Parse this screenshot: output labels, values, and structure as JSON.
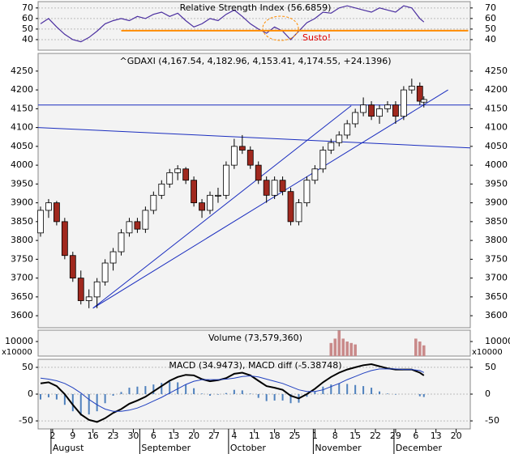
{
  "chart_data": [
    {
      "type": "line",
      "title": "Relative Strength Index (56.6859)",
      "x": [
        2,
        4,
        6,
        8,
        10,
        12,
        14,
        16,
        18,
        20,
        22,
        24,
        26,
        28,
        30,
        32,
        34,
        36,
        38,
        40,
        42,
        44,
        46,
        48,
        50,
        52,
        54,
        56,
        58,
        60,
        62,
        64,
        66,
        68,
        70,
        72,
        74,
        76,
        78,
        80,
        82,
        84,
        86,
        88,
        90,
        92,
        94,
        96,
        97
      ],
      "series": [
        {
          "color": "#4b2fa0",
          "values": [
            55,
            60,
            52,
            45,
            40,
            38,
            42,
            48,
            55,
            58,
            60,
            58,
            62,
            60,
            64,
            66,
            62,
            65,
            58,
            52,
            55,
            60,
            58,
            64,
            68,
            62,
            55,
            50,
            46,
            52,
            48,
            40,
            48,
            56,
            60,
            66,
            65,
            70,
            72,
            70,
            68,
            66,
            70,
            68,
            66,
            72,
            70,
            60,
            56.6859
          ]
        }
      ],
      "xlim": [
        1.4,
        108.5
      ],
      "ylim": [
        30,
        76
      ],
      "yticks": [
        40,
        50,
        60,
        70
      ],
      "grid": true,
      "hline": {
        "value": 48.5,
        "from": 22,
        "to": 108,
        "color": "#ff8c00"
      },
      "annotation": {
        "text": "Susto!",
        "color": "#e00000"
      }
    },
    {
      "type": "candlestick",
      "title": "^GDAXI (4,167.54, 4,182.96, 4,153.41, 4,174.55, +24.1396)",
      "x": [
        2,
        4,
        6,
        8,
        10,
        12,
        14,
        16,
        18,
        20,
        22,
        24,
        26,
        28,
        30,
        32,
        34,
        36,
        38,
        40,
        42,
        44,
        46,
        48,
        50,
        52,
        54,
        56,
        58,
        60,
        62,
        64,
        66,
        68,
        70,
        72,
        74,
        76,
        78,
        80,
        82,
        84,
        86,
        88,
        90,
        92,
        94,
        96,
        97
      ],
      "ohlc": [
        [
          3820,
          3890,
          3810,
          3880
        ],
        [
          3880,
          3910,
          3860,
          3900
        ],
        [
          3900,
          3905,
          3840,
          3850
        ],
        [
          3850,
          3860,
          3750,
          3760
        ],
        [
          3760,
          3770,
          3690,
          3700
        ],
        [
          3700,
          3720,
          3630,
          3640
        ],
        [
          3640,
          3670,
          3620,
          3650
        ],
        [
          3650,
          3700,
          3620,
          3690
        ],
        [
          3690,
          3750,
          3680,
          3740
        ],
        [
          3740,
          3780,
          3720,
          3770
        ],
        [
          3770,
          3830,
          3760,
          3820
        ],
        [
          3820,
          3860,
          3810,
          3850
        ],
        [
          3850,
          3860,
          3820,
          3830
        ],
        [
          3830,
          3890,
          3820,
          3880
        ],
        [
          3880,
          3930,
          3870,
          3920
        ],
        [
          3920,
          3960,
          3910,
          3950
        ],
        [
          3950,
          3990,
          3940,
          3980
        ],
        [
          3980,
          4000,
          3960,
          3990
        ],
        [
          3990,
          3995,
          3950,
          3960
        ],
        [
          3960,
          3970,
          3890,
          3900
        ],
        [
          3900,
          3910,
          3860,
          3880
        ],
        [
          3880,
          3930,
          3870,
          3920
        ],
        [
          3920,
          3940,
          3900,
          3920
        ],
        [
          3920,
          4010,
          3910,
          4000
        ],
        [
          4000,
          4070,
          3990,
          4050
        ],
        [
          4050,
          4080,
          4030,
          4040
        ],
        [
          4040,
          4050,
          3990,
          4000
        ],
        [
          4000,
          4010,
          3950,
          3960
        ],
        [
          3960,
          3970,
          3900,
          3920
        ],
        [
          3920,
          3970,
          3910,
          3960
        ],
        [
          3960,
          3970,
          3920,
          3930
        ],
        [
          3930,
          3940,
          3840,
          3850
        ],
        [
          3850,
          3910,
          3840,
          3900
        ],
        [
          3900,
          3970,
          3890,
          3960
        ],
        [
          3960,
          4000,
          3950,
          3990
        ],
        [
          3990,
          4050,
          3980,
          4040
        ],
        [
          4040,
          4070,
          4030,
          4060
        ],
        [
          4060,
          4090,
          4050,
          4080
        ],
        [
          4080,
          4120,
          4070,
          4110
        ],
        [
          4110,
          4150,
          4100,
          4140
        ],
        [
          4140,
          4180,
          4130,
          4160
        ],
        [
          4160,
          4170,
          4120,
          4130
        ],
        [
          4130,
          4160,
          4110,
          4150
        ],
        [
          4150,
          4170,
          4140,
          4160
        ],
        [
          4160,
          4170,
          4110,
          4130
        ],
        [
          4130,
          4210,
          4120,
          4200
        ],
        [
          4200,
          4230,
          4190,
          4210
        ],
        [
          4210,
          4220,
          4160,
          4170
        ],
        [
          4167.54,
          4182.96,
          4153.41,
          4174.55
        ]
      ],
      "up_color": "#ffffff",
      "down_color": "#a0281e",
      "xlim": [
        1.4,
        108.5
      ],
      "ylim": [
        3568,
        4297
      ],
      "yticks": [
        3600,
        3650,
        3700,
        3750,
        3800,
        3850,
        3900,
        3950,
        4000,
        4050,
        4100,
        4150,
        4200,
        4250
      ],
      "trendlines": [
        {
          "x": [
            15,
            103
          ],
          "y": [
            3620,
            4200
          ]
        },
        {
          "x": [
            15,
            79
          ],
          "y": [
            3620,
            4158
          ]
        },
        {
          "x": [
            1.4,
            108.5
          ],
          "y": [
            4160,
            4160
          ]
        },
        {
          "x": [
            1.4,
            108.5
          ],
          "y": [
            4100,
            4046
          ]
        }
      ],
      "trendline_color": "#1a2dbf"
    },
    {
      "type": "bar",
      "title": "Volume (73,579,360)",
      "x": [
        74,
        75,
        76,
        77,
        78,
        79,
        80,
        95,
        96,
        97
      ],
      "values": [
        9000,
        12000,
        17500,
        12000,
        10000,
        9000,
        8000,
        12000,
        10000,
        7358
      ],
      "color": "#c98a8a",
      "xlim": [
        1.4,
        108.5
      ],
      "ylim": [
        0,
        17800
      ],
      "yticks": [
        10000
      ],
      "unit_label": "x10000"
    },
    {
      "type": "macd",
      "title": "MACD (34.9473), MACD diff (-5.38748)",
      "x": [
        2,
        4,
        6,
        8,
        10,
        12,
        14,
        16,
        18,
        20,
        22,
        24,
        26,
        28,
        30,
        32,
        34,
        36,
        38,
        40,
        42,
        44,
        46,
        48,
        50,
        52,
        54,
        56,
        58,
        60,
        62,
        64,
        66,
        68,
        70,
        72,
        74,
        76,
        78,
        80,
        82,
        84,
        86,
        88,
        90,
        92,
        94,
        96,
        97
      ],
      "series": [
        {
          "color": "#000000",
          "values": [
            20,
            22,
            15,
            0,
            -20,
            -38,
            -48,
            -52,
            -45,
            -35,
            -28,
            -18,
            -12,
            -5,
            5,
            15,
            25,
            32,
            36,
            35,
            28,
            24,
            26,
            30,
            38,
            40,
            35,
            25,
            15,
            12,
            8,
            -3,
            -8,
            0,
            10,
            22,
            32,
            40,
            46,
            50,
            54,
            56,
            52,
            48,
            46,
            46,
            46,
            40,
            34.9473
          ]
        },
        {
          "color": "#1f3fbf",
          "values": [
            30,
            28,
            25,
            20,
            12,
            2,
            -10,
            -20,
            -28,
            -32,
            -32,
            -30,
            -26,
            -20,
            -13,
            -6,
            2,
            10,
            18,
            24,
            27,
            27,
            27,
            28,
            30,
            33,
            34,
            32,
            28,
            24,
            20,
            14,
            8,
            5,
            5,
            8,
            14,
            20,
            27,
            33,
            39,
            44,
            47,
            47,
            47,
            46,
            46,
            44,
            40.33478
          ]
        }
      ],
      "histogram": {
        "color": "#4f81bd",
        "values": [
          -10,
          -6,
          -10,
          -20,
          -32,
          -40,
          -38,
          -32,
          -17,
          -3,
          4,
          12,
          14,
          15,
          18,
          21,
          23,
          22,
          18,
          11,
          1,
          -3,
          -1,
          2,
          8,
          7,
          1,
          -7,
          -13,
          -12,
          -12,
          -17,
          -16,
          -5,
          5,
          14,
          18,
          20,
          19,
          17,
          15,
          12,
          5,
          1,
          -1,
          0,
          0,
          -4,
          -5.38748
        ]
      },
      "xlim": [
        1.4,
        108.5
      ],
      "ylim": [
        -65,
        65
      ],
      "yticks": [
        -50,
        0,
        50
      ],
      "grid": true,
      "xticks": [
        {
          "value": 5,
          "label": "2"
        },
        {
          "value": 10,
          "label": "9"
        },
        {
          "value": 15,
          "label": "16"
        },
        {
          "value": 20,
          "label": "23"
        },
        {
          "value": 25,
          "label": "30"
        },
        {
          "value": 30,
          "label": "6"
        },
        {
          "value": 35,
          "label": "13"
        },
        {
          "value": 40,
          "label": "20"
        },
        {
          "value": 45,
          "label": "27"
        },
        {
          "value": 50,
          "label": "4"
        },
        {
          "value": 55,
          "label": "11"
        },
        {
          "value": 60,
          "label": "18"
        },
        {
          "value": 65,
          "label": "25"
        },
        {
          "value": 70,
          "label": "1"
        },
        {
          "value": 75,
          "label": "8"
        },
        {
          "value": 80,
          "label": "15"
        },
        {
          "value": 85,
          "label": "22"
        },
        {
          "value": 90,
          "label": "29"
        },
        {
          "value": 95,
          "label": "6"
        },
        {
          "value": 100,
          "label": "13"
        },
        {
          "value": 105,
          "label": "20"
        }
      ],
      "month_labels": [
        {
          "value": 5,
          "label": "August"
        },
        {
          "value": 27,
          "label": "September"
        },
        {
          "value": 49,
          "label": "October"
        },
        {
          "value": 70,
          "label": "November"
        },
        {
          "value": 90,
          "label": "December"
        }
      ]
    }
  ]
}
